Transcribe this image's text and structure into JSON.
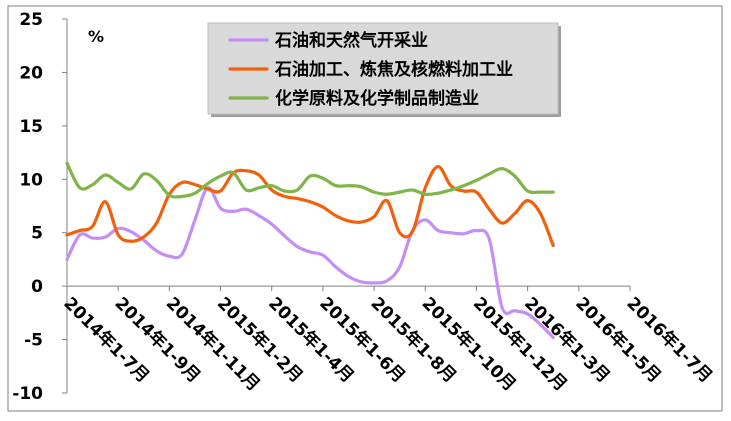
{
  "chart_data": {
    "type": "line",
    "unit_label": "%",
    "categories": [
      "2014年1-7月",
      "2014年1-9月",
      "2014年1-11月",
      "2015年1-2月",
      "2015年1-4月",
      "2015年1-6月",
      "2015年1-8月",
      "2015年1-10月",
      "2015年1-12月",
      "2016年1-3月",
      "2016年1-5月",
      "2016年1-7月"
    ],
    "x": [
      0,
      1,
      2,
      3,
      4,
      5,
      6,
      7,
      8,
      9,
      10,
      11,
      12,
      13,
      14,
      15,
      16,
      17,
      18,
      19,
      20,
      21,
      22,
      23,
      24,
      25,
      26,
      27,
      28,
      29,
      30,
      31,
      32,
      33,
      34,
      35,
      36,
      37,
      38,
      39,
      40,
      41,
      42,
      43,
      44,
      45,
      46,
      47,
      48,
      49,
      50,
      51,
      52,
      53,
      54,
      55,
      56,
      57,
      58,
      59
    ],
    "ylim": [
      -10,
      25
    ],
    "yticks": [
      -10,
      -5,
      0,
      5,
      10,
      15,
      20,
      25
    ],
    "grid": false,
    "legend_position": "top-center",
    "series": [
      {
        "name": "石油和天然气开采业",
        "color": "#c58df6",
        "values": [
          2.5,
          4.8,
          4.5,
          4.6,
          5.4,
          5.1,
          4.3,
          3.3,
          2.8,
          3.0,
          6.2,
          9.2,
          7.3,
          7.0,
          7.2,
          6.6,
          5.8,
          4.7,
          3.7,
          3.2,
          2.9,
          1.8,
          0.9,
          0.4,
          0.3,
          0.5,
          1.8,
          5.2,
          6.2,
          5.2,
          5.0,
          4.9,
          5.2,
          4.4,
          -2.0,
          -2.3,
          -2.6,
          -3.6,
          -4.8,
          null,
          null,
          null,
          null,
          null,
          null,
          null,
          null,
          null,
          null,
          null,
          null,
          null,
          null,
          null,
          null,
          null,
          null,
          null,
          null,
          null
        ]
      },
      {
        "name": "石油加工、炼焦及核燃料加工业",
        "color": "#f2600c",
        "values": [
          4.8,
          5.2,
          5.6,
          7.9,
          4.8,
          4.2,
          4.6,
          5.9,
          8.6,
          9.7,
          9.5,
          9.1,
          8.9,
          10.6,
          10.8,
          10.4,
          9.0,
          8.4,
          8.2,
          7.9,
          7.4,
          6.6,
          6.1,
          6.0,
          6.5,
          8.0,
          5.0,
          5.1,
          9.2,
          11.2,
          9.4,
          8.9,
          8.8,
          7.2,
          5.9,
          6.8,
          8.0,
          6.8,
          3.8,
          null,
          null,
          null,
          null,
          null,
          null,
          null,
          null,
          null,
          null,
          null,
          null,
          null,
          null,
          null,
          null,
          null,
          null,
          null,
          null,
          null
        ]
      },
      {
        "name": "化学原料及化学制品制造业",
        "color": "#7fb447",
        "values": [
          11.5,
          9.2,
          9.5,
          10.4,
          9.7,
          9.1,
          10.5,
          9.9,
          8.5,
          8.4,
          8.7,
          9.6,
          10.3,
          10.6,
          9.0,
          9.2,
          9.4,
          8.9,
          9.0,
          10.3,
          10.1,
          9.4,
          9.4,
          9.3,
          8.8,
          8.6,
          8.8,
          9.0,
          8.6,
          8.7,
          9.0,
          9.4,
          9.9,
          10.5,
          11.0,
          10.3,
          8.9,
          8.8,
          8.8,
          null,
          null,
          null,
          null,
          null,
          null,
          null,
          null,
          null,
          null,
          null,
          null,
          null,
          null,
          null,
          null,
          null,
          null,
          null,
          null,
          null
        ]
      }
    ]
  }
}
